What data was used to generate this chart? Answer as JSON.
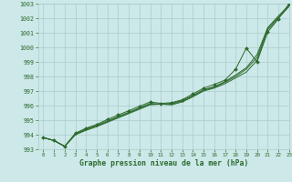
{
  "x": [
    0,
    1,
    2,
    3,
    4,
    5,
    6,
    7,
    8,
    9,
    10,
    11,
    12,
    13,
    14,
    15,
    16,
    17,
    18,
    19,
    20,
    21,
    22,
    23
  ],
  "line1": [
    993.8,
    993.6,
    993.2,
    994.0,
    994.3,
    994.55,
    994.85,
    995.15,
    995.45,
    995.75,
    996.05,
    996.1,
    996.05,
    996.25,
    996.6,
    997.0,
    997.2,
    997.5,
    997.9,
    998.3,
    999.1,
    1001.2,
    1002.0,
    1002.8
  ],
  "line2": [
    993.8,
    993.6,
    993.2,
    994.0,
    994.35,
    994.6,
    994.9,
    995.2,
    995.5,
    995.8,
    996.1,
    996.1,
    996.1,
    996.3,
    996.65,
    997.05,
    997.25,
    997.6,
    998.0,
    998.5,
    999.3,
    1001.3,
    1002.1,
    1002.85
  ],
  "line3": [
    993.8,
    993.6,
    993.2,
    994.05,
    994.4,
    994.65,
    994.95,
    995.25,
    995.55,
    995.85,
    996.15,
    996.1,
    996.15,
    996.35,
    996.7,
    997.1,
    997.3,
    997.65,
    998.1,
    998.6,
    999.5,
    1001.35,
    1002.15,
    1002.9
  ],
  "line_marker": [
    993.8,
    993.6,
    993.2,
    994.1,
    994.45,
    994.7,
    995.05,
    995.35,
    995.65,
    995.95,
    996.25,
    996.15,
    996.2,
    996.4,
    996.8,
    997.2,
    997.45,
    997.75,
    998.5,
    999.95,
    999.0,
    1001.05,
    1001.95,
    1003.0
  ],
  "line_color": "#2d6a2d",
  "bg_color": "#cce8e8",
  "grid_color": "#aacccc",
  "xlabel": "Graphe pression niveau de la mer (hPa)",
  "ylim": [
    993,
    1003
  ],
  "xlim": [
    -0.5,
    23
  ],
  "yticks": [
    993,
    994,
    995,
    996,
    997,
    998,
    999,
    1000,
    1001,
    1002,
    1003
  ],
  "xticks": [
    0,
    1,
    2,
    3,
    4,
    5,
    6,
    7,
    8,
    9,
    10,
    11,
    12,
    13,
    14,
    15,
    16,
    17,
    18,
    19,
    20,
    21,
    22,
    23
  ]
}
